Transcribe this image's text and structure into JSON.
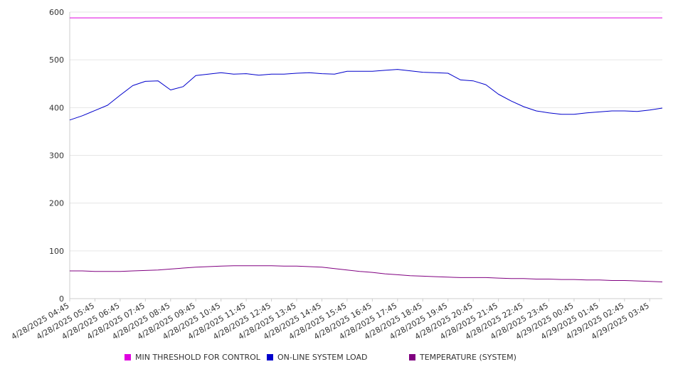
{
  "chart_data": {
    "type": "line",
    "ylim": [
      0,
      600
    ],
    "y_ticks": [
      0,
      100,
      200,
      300,
      400,
      500,
      600
    ],
    "grid": true,
    "legend_position": "bottom",
    "x_tick_labels": [
      "4/28/2025 04:45",
      "4/28/2025 05:45",
      "4/28/2025 06:45",
      "4/28/2025 07:45",
      "4/28/2025 08:45",
      "4/28/2025 09:45",
      "4/28/2025 10:45",
      "4/28/2025 11:45",
      "4/28/2025 12:45",
      "4/28/2025 13:45",
      "4/28/2025 14:45",
      "4/28/2025 15:45",
      "4/28/2025 16:45",
      "4/28/2025 17:45",
      "4/28/2025 18:45",
      "4/28/2025 19:45",
      "4/28/2025 20:45",
      "4/28/2025 21:45",
      "4/28/2025 22:45",
      "4/28/2025 23:45",
      "4/29/2025 00:45",
      "4/29/2025 01:45",
      "4/29/2025 02:45",
      "4/29/2025 03:45"
    ],
    "x": [
      "4/28/2025 04:45",
      "4/28/2025 05:15",
      "4/28/2025 05:45",
      "4/28/2025 06:15",
      "4/28/2025 06:45",
      "4/28/2025 07:15",
      "4/28/2025 07:45",
      "4/28/2025 08:15",
      "4/28/2025 08:45",
      "4/28/2025 09:15",
      "4/28/2025 09:45",
      "4/28/2025 10:15",
      "4/28/2025 10:45",
      "4/28/2025 11:15",
      "4/28/2025 11:45",
      "4/28/2025 12:15",
      "4/28/2025 12:45",
      "4/28/2025 13:15",
      "4/28/2025 13:45",
      "4/28/2025 14:15",
      "4/28/2025 14:45",
      "4/28/2025 15:15",
      "4/28/2025 15:45",
      "4/28/2025 16:15",
      "4/28/2025 16:45",
      "4/28/2025 17:15",
      "4/28/2025 17:45",
      "4/28/2025 18:15",
      "4/28/2025 18:45",
      "4/28/2025 19:15",
      "4/28/2025 19:45",
      "4/28/2025 20:15",
      "4/28/2025 20:45",
      "4/28/2025 21:15",
      "4/28/2025 21:45",
      "4/28/2025 22:15",
      "4/28/2025 22:45",
      "4/28/2025 23:15",
      "4/28/2025 23:45",
      "4/29/2025 00:15",
      "4/29/2025 00:45",
      "4/29/2025 01:15",
      "4/29/2025 01:45",
      "4/29/2025 02:15",
      "4/29/2025 02:45",
      "4/29/2025 03:15",
      "4/29/2025 03:45",
      "4/29/2025 04:15"
    ],
    "series": [
      {
        "name": "MIN THRESHOLD FOR CONTROL",
        "color": "#e000e0",
        "values": [
          588,
          588,
          588,
          588,
          588,
          588,
          588,
          588,
          588,
          588,
          588,
          588,
          588,
          588,
          588,
          588,
          588,
          588,
          588,
          588,
          588,
          588,
          588,
          588,
          588,
          588,
          588,
          588,
          588,
          588,
          588,
          588,
          588,
          588,
          588,
          588,
          588,
          588,
          588,
          588,
          588,
          588,
          588,
          588,
          588,
          588,
          588,
          588
        ]
      },
      {
        "name": "ON-LINE SYSTEM LOAD",
        "color": "#0000cc",
        "values": [
          374,
          383,
          394,
          405,
          426,
          446,
          455,
          456,
          437,
          444,
          467,
          470,
          473,
          470,
          471,
          468,
          470,
          470,
          472,
          473,
          471,
          470,
          476,
          476,
          476,
          478,
          480,
          477,
          474,
          473,
          472,
          458,
          456,
          448,
          428,
          414,
          402,
          393,
          389,
          386,
          386,
          389,
          391,
          393,
          393,
          392,
          395,
          399
        ]
      },
      {
        "name": "TEMPERATURE (SYSTEM)",
        "color": "#800080",
        "values": [
          58,
          58,
          57,
          57,
          57,
          58,
          59,
          60,
          62,
          64,
          66,
          67,
          68,
          69,
          69,
          69,
          69,
          68,
          68,
          67,
          66,
          63,
          60,
          57,
          55,
          52,
          50,
          48,
          47,
          46,
          45,
          44,
          44,
          44,
          43,
          42,
          42,
          41,
          41,
          40,
          40,
          39,
          39,
          38,
          38,
          37,
          36,
          35
        ]
      }
    ]
  }
}
